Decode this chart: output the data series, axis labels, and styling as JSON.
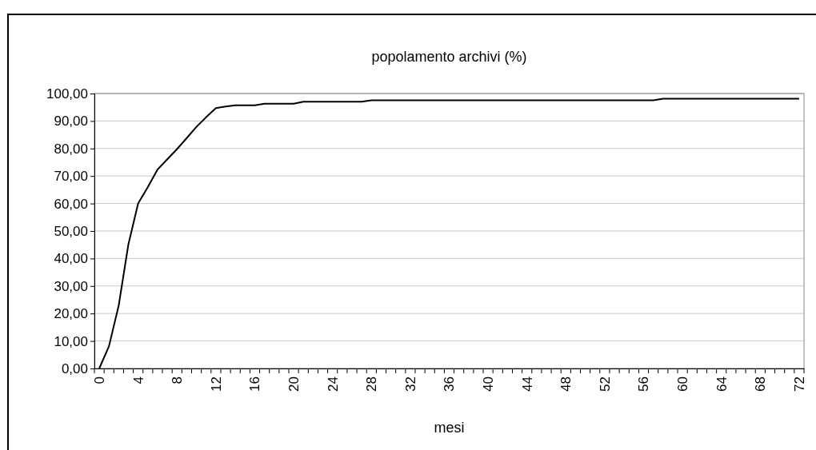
{
  "chart_data": {
    "type": "line",
    "title": "popolamento archivi (%)",
    "xlabel": "mesi",
    "categories": [
      "0",
      null,
      null,
      null,
      "4",
      null,
      null,
      null,
      "8",
      null,
      null,
      null,
      "12",
      null,
      null,
      null,
      "16",
      null,
      null,
      null,
      "20",
      null,
      null,
      null,
      "24",
      null,
      null,
      null,
      "28",
      null,
      null,
      null,
      "32",
      null,
      null,
      null,
      "36",
      null,
      null,
      null,
      "40",
      null,
      null,
      null,
      "44",
      null,
      null,
      null,
      "48",
      null,
      null,
      null,
      "52",
      null,
      null,
      null,
      "56",
      null,
      null,
      null,
      "60",
      null,
      null,
      null,
      "64",
      null,
      null,
      null,
      "68",
      null,
      null,
      null,
      "72"
    ],
    "series": [
      {
        "color": "#000000",
        "values": [
          0,
          8.1,
          22.9,
          45.2,
          60.0,
          66.0,
          72.4,
          76.1,
          79.8,
          83.8,
          87.9,
          91.4,
          94.7,
          95.3,
          95.7,
          95.7,
          95.7,
          96.3,
          96.3,
          96.3,
          96.3,
          97.0,
          97.0,
          97.0,
          97.0,
          97.0,
          97.0,
          97.0,
          97.5,
          97.5,
          97.5,
          97.5,
          97.5,
          97.5,
          97.5,
          97.5,
          97.5,
          97.5,
          97.5,
          97.5,
          97.5,
          97.5,
          97.5,
          97.5,
          97.5,
          97.5,
          97.5,
          97.5,
          97.5,
          97.5,
          97.5,
          97.5,
          97.5,
          97.5,
          97.5,
          97.5,
          97.5,
          97.5,
          98.1,
          98.1,
          98.1,
          98.1,
          98.1,
          98.1,
          98.1,
          98.1,
          98.1,
          98.1,
          98.1,
          98.1,
          98.1,
          98.1,
          98.1
        ]
      }
    ],
    "ylim": [
      0,
      100
    ],
    "yticks": [
      {
        "value": 0,
        "label": "0,00"
      },
      {
        "value": 10,
        "label": "10,00"
      },
      {
        "value": 20,
        "label": "20,00"
      },
      {
        "value": 30,
        "label": "30,00"
      },
      {
        "value": 40,
        "label": "40,00"
      },
      {
        "value": 50,
        "label": "50,00"
      },
      {
        "value": 60,
        "label": "60,00"
      },
      {
        "value": 70,
        "label": "70,00"
      },
      {
        "value": 80,
        "label": "80,00"
      },
      {
        "value": 90,
        "label": "90,00"
      },
      {
        "value": 100,
        "label": "100,00"
      }
    ],
    "grid": "y",
    "marker": "none",
    "line_style": "solid"
  }
}
